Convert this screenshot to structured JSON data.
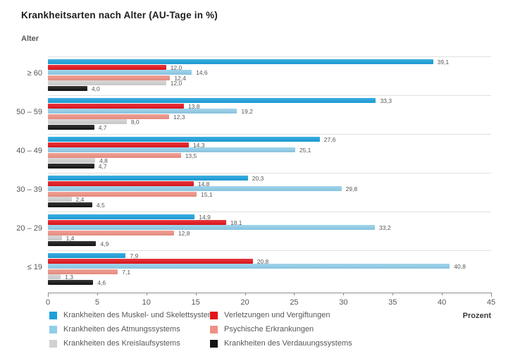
{
  "chart_data": {
    "type": "bar",
    "orientation": "horizontal",
    "title": "Krankheitsarten nach Alter (AU-Tage in %)",
    "ylabel": "Alter",
    "xlabel": "Prozent",
    "xlim": [
      0,
      45
    ],
    "x_ticks": [
      0,
      5,
      10,
      15,
      20,
      25,
      30,
      35,
      40,
      45
    ],
    "grid": "group-separators-only",
    "value_labels": "one-decimal-comma",
    "categories": [
      "≥ 60",
      "50 – 59",
      "40 – 49",
      "30 – 39",
      "20 – 29",
      "≤ 19"
    ],
    "series": [
      {
        "name": "Krankheiten des Muskel- und Skelettsystems",
        "color": "#1CA0DC",
        "values": [
          39.1,
          33.3,
          27.6,
          20.3,
          14.9,
          7.9
        ]
      },
      {
        "name": "Verletzungen und Vergiftungen",
        "color": "#E3141C",
        "values": [
          12.0,
          13.8,
          14.3,
          14.8,
          18.1,
          20.8
        ]
      },
      {
        "name": "Krankheiten des Atmungssystems",
        "color": "#90CDE9",
        "values": [
          14.6,
          19.2,
          25.1,
          29.8,
          33.2,
          40.8
        ]
      },
      {
        "name": "Psychische Erkrankungen",
        "color": "#EF9184",
        "values": [
          12.4,
          12.3,
          13.5,
          15.1,
          12.8,
          7.1
        ]
      },
      {
        "name": "Krankheiten des Kreislaufsystems",
        "color": "#D2D1D1",
        "values": [
          12.0,
          8.0,
          4.8,
          2.4,
          1.4,
          1.3
        ]
      },
      {
        "name": "Krankheiten des Verdauungssystems",
        "color": "#141414",
        "values": [
          4.0,
          4.7,
          4.7,
          4.5,
          4.9,
          4.6
        ]
      }
    ],
    "legend": {
      "position": "bottom",
      "columns": [
        [
          0,
          2,
          4
        ],
        [
          1,
          3,
          5
        ]
      ]
    },
    "colors": {
      "separator_line": "#e0e0e0",
      "axis_line": "#8c8c8c",
      "text_gray": "#575756",
      "title_text": "#1d1d1b"
    }
  }
}
